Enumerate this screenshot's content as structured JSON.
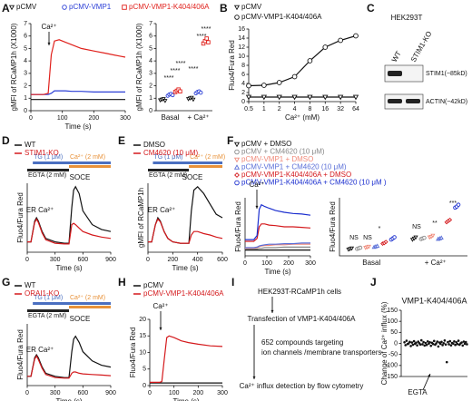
{
  "panel_labels": [
    "A",
    "B",
    "C",
    "D",
    "E",
    "F",
    "G",
    "H",
    "I",
    "J"
  ],
  "blot": {
    "cell_line": "HEK293T",
    "lanes": [
      "WT",
      "STIM1-KO"
    ],
    "bands": [
      "STIM1(~85kD)",
      "ACTIN(~42kD)"
    ]
  },
  "workflow": {
    "steps": [
      "HEK293T-RCaMP1h cells",
      "Transfection of VMP1-K404/406A",
      "Ca²⁺ influx detection by flow cytometry"
    ],
    "screen": [
      "652 compounds targeting",
      "ion channels /membrane transporters"
    ]
  },
  "chart_data": [
    {
      "type": "line",
      "ylabel": "gMFI of RCaMP1h (X1000)",
      "xlabel": "Time (s)",
      "x": [
        0,
        20,
        40,
        55,
        65,
        75,
        90,
        110,
        130,
        160,
        200,
        240,
        280,
        300
      ],
      "series": [
        {
          "name": "pCMV",
          "color": "#111111",
          "marker": "triangle-down",
          "values": [
            0.9,
            0.9,
            0.9,
            0.9,
            0.9,
            0.9,
            0.9,
            0.9,
            0.9,
            0.9,
            0.9,
            0.9,
            0.9,
            0.9
          ]
        },
        {
          "name": "pCMV-VMP1",
          "color": "#2b3fd6",
          "marker": "circle",
          "values": [
            1.3,
            1.3,
            1.3,
            1.3,
            1.4,
            1.6,
            1.6,
            1.6,
            1.55,
            1.55,
            1.5,
            1.5,
            1.5,
            1.5
          ]
        },
        {
          "name": "pCMV-VMP1-K404/406A",
          "color": "#e0211c",
          "marker": "square",
          "values": [
            1.3,
            1.3,
            1.3,
            1.4,
            4.5,
            5.6,
            5.7,
            5.5,
            5.3,
            5.0,
            4.8,
            4.6,
            4.4,
            4.3
          ]
        }
      ],
      "xlim": [
        0,
        300
      ],
      "xticks": [
        0,
        100,
        200,
        300
      ],
      "ylim": [
        0,
        7
      ],
      "yticks": [
        0,
        1,
        2,
        3,
        4,
        5,
        6,
        7
      ],
      "annotations": [
        "Ca²⁺"
      ]
    },
    {
      "type": "dot",
      "ylabel": "gMFI of RCaMP1h (X1000)",
      "categories": [
        "Basal",
        "+ Ca²⁺"
      ],
      "series": [
        {
          "color": "#111111",
          "marker": "triangle-down",
          "values": [
            [
              0.85,
              0.9,
              0.95,
              0.8
            ],
            [
              0.95,
              1.0,
              1.05,
              0.9
            ]
          ]
        },
        {
          "color": "#2b3fd6",
          "marker": "circle",
          "values": [
            [
              1.2,
              1.3,
              1.35,
              1.25
            ],
            [
              1.4,
              1.5,
              1.55,
              1.45
            ]
          ]
        },
        {
          "color": "#e0211c",
          "marker": "square",
          "values": [
            [
              1.5,
              1.6,
              1.7,
              1.55
            ],
            [
              5.4,
              5.6,
              5.8,
              5.5
            ]
          ]
        }
      ],
      "ylim": [
        0,
        7
      ],
      "yticks": [
        0,
        1,
        2,
        3,
        4,
        5,
        6,
        7
      ],
      "annotations": [
        "****",
        "****",
        "****",
        "****",
        "****",
        "****"
      ]
    },
    {
      "type": "line",
      "ylabel": "Fluo4/Fura Red",
      "xlabel": "Ca²⁺ (mM)",
      "xlog": true,
      "markers": true,
      "x": [
        0.5,
        1,
        2,
        4,
        8,
        16,
        32,
        64
      ],
      "series": [
        {
          "name": "pCMV",
          "color": "#111111",
          "marker": "triangle-down",
          "values": [
            1,
            1,
            1,
            1,
            1,
            1,
            1,
            1
          ]
        },
        {
          "name": "pCMV-VMP1-K404/406A",
          "color": "#111111",
          "marker": "circle",
          "values": [
            3.5,
            3.6,
            4.2,
            5.5,
            9,
            12,
            13.5,
            14.5
          ]
        }
      ],
      "xlim": [
        0.5,
        64
      ],
      "xticks": [
        0.5,
        1,
        2,
        4,
        8,
        16,
        32,
        64
      ],
      "ylim": [
        0,
        16
      ],
      "yticks": [
        0,
        2,
        4,
        6,
        8,
        10,
        12,
        14,
        16
      ]
    },
    {
      "type": "line",
      "ylabel": "Fluo4/Fura Red",
      "xlabel": "Time (s)",
      "x": [
        0,
        40,
        80,
        100,
        120,
        160,
        200,
        300,
        400,
        450,
        480,
        500,
        520,
        560,
        600,
        700,
        800,
        900
      ],
      "series": [
        {
          "name": "WT",
          "color": "#111111",
          "values": [
            0.15,
            0.15,
            0.45,
            0.5,
            0.45,
            0.3,
            0.2,
            0.15,
            0.13,
            0.13,
            0.65,
            0.9,
            0.95,
            0.85,
            0.6,
            0.4,
            0.33,
            0.3
          ]
        },
        {
          "name": "STIM1-KO",
          "color": "#d4191c",
          "values": [
            0.15,
            0.15,
            0.43,
            0.48,
            0.43,
            0.28,
            0.18,
            0.13,
            0.12,
            0.12,
            0.4,
            0.42,
            0.4,
            0.35,
            0.3,
            0.25,
            0.22,
            0.2
          ]
        }
      ],
      "xlim": [
        0,
        900
      ],
      "xticks": [
        0,
        300,
        600,
        900
      ],
      "ylim": [
        0,
        1
      ],
      "treatments": [
        {
          "label": "TG (1 μM)",
          "color": "#4a6fc0",
          "start": 60,
          "end": 900
        },
        {
          "label": "Ca²⁺ (2 mM)",
          "color": "#e8923a",
          "start": 450,
          "end": 900
        },
        {
          "label": "EGTA (2 mM)",
          "color": "#222222",
          "start": 0,
          "end": 450
        }
      ],
      "annotations": [
        "ER Ca²⁺",
        "SOCE"
      ]
    },
    {
      "type": "line",
      "ylabel": "gMFI of RCaMP1h",
      "xlabel": "Time (s)",
      "x": [
        0,
        30,
        60,
        80,
        100,
        130,
        160,
        200,
        260,
        300,
        330,
        350,
        370,
        400,
        450,
        500,
        550,
        600
      ],
      "series": [
        {
          "name": "DMSO",
          "color": "#111111",
          "values": [
            0.15,
            0.15,
            0.4,
            0.5,
            0.45,
            0.3,
            0.2,
            0.15,
            0.13,
            0.13,
            0.13,
            0.6,
            0.9,
            0.95,
            0.85,
            0.7,
            0.55,
            0.5
          ]
        },
        {
          "name": "CM4620 (10 μM)",
          "color": "#d4191c",
          "values": [
            0.15,
            0.15,
            0.4,
            0.48,
            0.44,
            0.3,
            0.2,
            0.15,
            0.13,
            0.13,
            0.13,
            0.25,
            0.3,
            0.3,
            0.27,
            0.25,
            0.22,
            0.2
          ]
        }
      ],
      "xlim": [
        0,
        600
      ],
      "xticks": [
        0,
        200,
        400,
        600
      ],
      "ylim": [
        0,
        1
      ],
      "treatments": [
        {
          "label": "TG (1 μM)",
          "color": "#4a6fc0",
          "start": 40,
          "end": 600
        },
        {
          "label": "Ca²⁺ (2 mM)",
          "color": "#e8923a",
          "start": 330,
          "end": 600
        },
        {
          "label": "EGTA (2 mM)",
          "color": "#222222",
          "start": 0,
          "end": 330
        }
      ],
      "annotations": [
        "ER Ca²⁺",
        "SOCE"
      ]
    },
    {
      "type": "line",
      "ylabel": "Fluo4/Fura Red",
      "xlabel": "Time (s)",
      "x": [
        0,
        20,
        40,
        55,
        65,
        75,
        90,
        110,
        140,
        180,
        220,
        260,
        300
      ],
      "series": [
        {
          "name": "pCMV + DMSO",
          "color": "#111111",
          "marker": "triangle-down",
          "values": [
            0.1,
            0.1,
            0.1,
            0.1,
            0.1,
            0.1,
            0.1,
            0.1,
            0.1,
            0.1,
            0.1,
            0.1,
            0.1
          ]
        },
        {
          "name": "pCMV + CM4620 (10 μM)",
          "color": "#888888",
          "marker": "circle",
          "values": [
            0.12,
            0.12,
            0.12,
            0.12,
            0.13,
            0.13,
            0.14,
            0.14,
            0.14,
            0.15,
            0.15,
            0.15,
            0.15
          ]
        },
        {
          "name": "pCMV-VMP1 + DMSO",
          "color": "#f08a7a",
          "marker": "triangle-down",
          "values": [
            0.13,
            0.13,
            0.13,
            0.14,
            0.16,
            0.17,
            0.18,
            0.18,
            0.19,
            0.19,
            0.2,
            0.2,
            0.2
          ]
        },
        {
          "name": "pCMV-VMP1 + CM4620 (10 μM)",
          "color": "#5a6fd8",
          "marker": "triangle-up",
          "values": [
            0.14,
            0.14,
            0.14,
            0.15,
            0.17,
            0.18,
            0.19,
            0.2,
            0.2,
            0.21,
            0.21,
            0.22,
            0.22
          ]
        },
        {
          "name": "pCMV-VMP1-K404/406A + DMSO",
          "color": "#d4191c",
          "marker": "diamond",
          "values": [
            0.25,
            0.25,
            0.25,
            0.3,
            0.5,
            0.55,
            0.55,
            0.53,
            0.52,
            0.5,
            0.5,
            0.49,
            0.48
          ]
        },
        {
          "name": "pCMV-VMP1-K404/406A + CM4620 (10 μM )",
          "color": "#1c2fcf",
          "marker": "circle",
          "values": [
            0.28,
            0.28,
            0.28,
            0.35,
            0.8,
            0.88,
            0.85,
            0.82,
            0.78,
            0.75,
            0.73,
            0.72,
            0.7
          ]
        }
      ],
      "xlim": [
        0,
        300
      ],
      "xticks": [
        0,
        100,
        200,
        300
      ],
      "ylim": [
        0,
        1
      ],
      "annotations": [
        "Ca²⁺"
      ]
    },
    {
      "type": "dot",
      "ylabel": "Fluo4/Fura Red",
      "categories": [
        "Basal",
        "+ Ca²⁺"
      ],
      "series": [
        {
          "color": "#111111",
          "marker": "triangle-down",
          "values": [
            [
              0.11,
              0.12,
              0.13
            ],
            [
              0.28,
              0.3,
              0.32
            ]
          ]
        },
        {
          "color": "#888888",
          "marker": "circle",
          "values": [
            [
              0.12,
              0.13,
              0.14
            ],
            [
              0.29,
              0.3,
              0.31
            ]
          ]
        },
        {
          "color": "#f08a7a",
          "marker": "triangle-down",
          "values": [
            [
              0.14,
              0.15,
              0.16
            ],
            [
              0.32,
              0.33,
              0.35
            ]
          ]
        },
        {
          "color": "#5a6fd8",
          "marker": "triangle-up",
          "values": [
            [
              0.15,
              0.16,
              0.17
            ],
            [
              0.29,
              0.3,
              0.31
            ]
          ]
        },
        {
          "color": "#d4191c",
          "marker": "diamond",
          "values": [
            [
              0.21,
              0.22,
              0.24
            ],
            [
              0.58,
              0.6,
              0.62
            ]
          ]
        },
        {
          "color": "#1c2fcf",
          "marker": "circle",
          "values": [
            [
              0.28,
              0.3,
              0.32
            ],
            [
              0.83,
              0.85,
              0.88
            ]
          ]
        }
      ],
      "ylim": [
        0,
        1
      ],
      "annotations": [
        "NS",
        "NS",
        "*",
        "NS",
        "**",
        "***"
      ]
    },
    {
      "type": "line",
      "ylabel": "Fluo4/Fura Red",
      "xlabel": "Time (s)",
      "x": [
        0,
        40,
        80,
        100,
        120,
        160,
        200,
        300,
        400,
        450,
        480,
        500,
        520,
        560,
        600,
        700,
        800,
        900
      ],
      "series": [
        {
          "name": "WT",
          "color": "#111111",
          "values": [
            0.15,
            0.15,
            0.45,
            0.5,
            0.45,
            0.3,
            0.2,
            0.15,
            0.13,
            0.13,
            0.55,
            0.75,
            0.8,
            0.7,
            0.55,
            0.4,
            0.33,
            0.3
          ]
        },
        {
          "name": "ORAI1-KO",
          "color": "#d4191c",
          "values": [
            0.15,
            0.15,
            0.43,
            0.48,
            0.42,
            0.28,
            0.18,
            0.13,
            0.12,
            0.12,
            0.2,
            0.22,
            0.22,
            0.2,
            0.19,
            0.18,
            0.17,
            0.16
          ]
        }
      ],
      "xlim": [
        0,
        900
      ],
      "xticks": [
        0,
        300,
        600,
        900
      ],
      "ylim": [
        0,
        1
      ],
      "treatments": [
        {
          "label": "TG (1 μM)",
          "color": "#4a6fc0",
          "start": 60,
          "end": 900
        },
        {
          "label": "Ca²⁺ (2 mM)",
          "color": "#e8923a",
          "start": 450,
          "end": 900
        },
        {
          "label": "EGTA (2 mM)",
          "color": "#222222",
          "start": 0,
          "end": 450
        }
      ],
      "annotations": [
        "ER Ca²⁺",
        "SOCE"
      ]
    },
    {
      "type": "line",
      "ylabel": "Fluo4/Fura Red",
      "xlabel": "Time (s)",
      "x": [
        0,
        20,
        40,
        50,
        60,
        70,
        80,
        100,
        130,
        160,
        200,
        250,
        300
      ],
      "series": [
        {
          "name": "pCMV",
          "color": "#111111",
          "values": [
            0.8,
            0.8,
            0.8,
            0.8,
            0.8,
            0.8,
            0.8,
            0.8,
            0.8,
            0.8,
            0.8,
            0.8,
            0.8
          ]
        },
        {
          "name": "pCMV-VMP1-K404/406A",
          "color": "#d4191c",
          "values": [
            1,
            1,
            1,
            1.2,
            8,
            14.5,
            15,
            14.5,
            13.5,
            13,
            12.5,
            12,
            11.8
          ]
        }
      ],
      "xlim": [
        0,
        300
      ],
      "xticks": [
        0,
        100,
        200,
        300
      ],
      "ylim": [
        0,
        20
      ],
      "yticks": [
        0,
        5,
        10,
        15,
        20
      ],
      "annotations": [
        "Ca²⁺"
      ]
    },
    {
      "type": "scatter",
      "title": "VMP1-K404/406A",
      "ylabel": "Change of Ca²⁺ influx (%)",
      "values": [
        5,
        -8,
        12,
        -3,
        0,
        7,
        -12,
        4,
        -6,
        10,
        -2,
        3,
        -9,
        8,
        1,
        -5,
        14,
        -4,
        6,
        -10,
        2,
        -7,
        9,
        -1,
        5,
        -11,
        3,
        -3,
        11,
        -6,
        0,
        8,
        -14,
        4,
        -2,
        7,
        -8,
        1,
        13,
        -5,
        -85,
        6,
        -4,
        10,
        -9,
        2,
        -1,
        9,
        -7,
        5,
        -3,
        12,
        -6,
        0,
        4,
        -10,
        8,
        -2,
        6,
        -4
      ],
      "color": "#111111",
      "ylim": [
        -150,
        150
      ],
      "yticks": [
        -150,
        -100,
        -50,
        0,
        50,
        100,
        150
      ],
      "annotations": [
        "EGTA"
      ]
    }
  ]
}
